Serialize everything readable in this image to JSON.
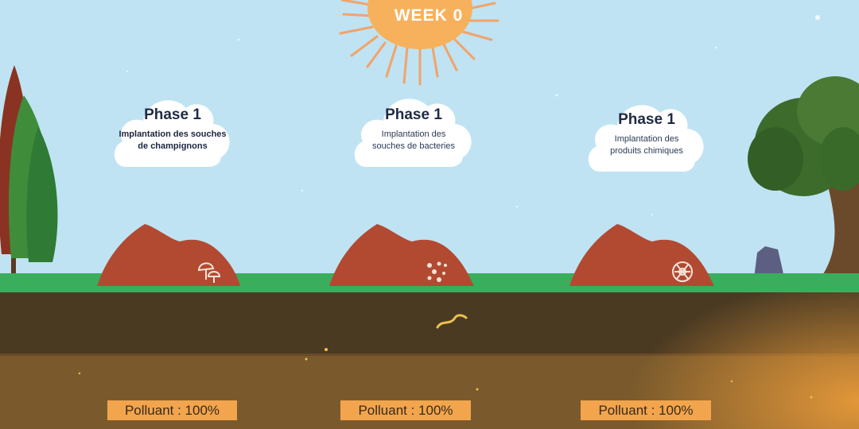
{
  "header": {
    "week_label": "WEEK 0"
  },
  "phases": [
    {
      "title": "Phase 1",
      "lines": [
        "Implantation des souches",
        "de champignons"
      ],
      "icon": "mushroom-icon",
      "pollutant": "Polluant : 100%"
    },
    {
      "title": "Phase 1",
      "lines": [
        "Implantation des",
        "souches de bacteries"
      ],
      "icon": "bacteria-icon",
      "pollutant": "Polluant : 100%"
    },
    {
      "title": "Phase 1",
      "lines": [
        "Implantation des",
        "produits chimiques"
      ],
      "icon": "biohazard-icon",
      "pollutant": "Polluant : 100%"
    }
  ],
  "colors": {
    "sky": "#bfe3f2",
    "sun": "#f7b15c",
    "soil_mound": "#b24a32",
    "grass": "#3aae5c",
    "topsoil": "#4a3a22",
    "subsoil": "#7a5a2c",
    "badge": "#f2a54d"
  }
}
